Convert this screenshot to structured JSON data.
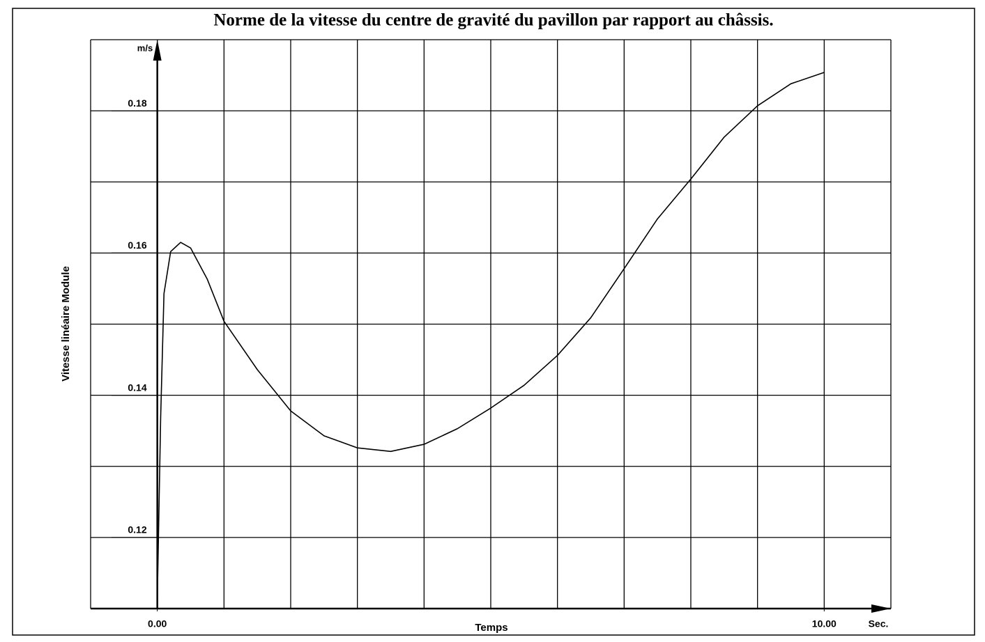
{
  "chart_data": {
    "type": "line",
    "title": "Norme de la vitesse du centre de gravité du pavillon par rapport au châssis.",
    "xlabel": "Temps",
    "ylabel": "Vitesse linéaire Module",
    "yunit": "m/s",
    "xunit": "Sec.",
    "x": [
      0,
      0.05,
      0.1,
      0.2,
      0.35,
      0.5,
      0.75,
      1.0,
      1.5,
      2.0,
      2.5,
      3.0,
      3.5,
      4.0,
      4.5,
      5.0,
      5.5,
      6.0,
      6.5,
      7.0,
      7.5,
      8.0,
      8.5,
      9.0,
      9.5,
      10.0
    ],
    "series": [
      {
        "color": "#000000",
        "values": [
          0.1114,
          0.1368,
          0.1543,
          0.1602,
          0.1615,
          0.1607,
          0.1563,
          0.1504,
          0.1436,
          0.1378,
          0.1343,
          0.1326,
          0.1321,
          0.1331,
          0.1353,
          0.1382,
          0.1414,
          0.1456,
          0.1509,
          0.1578,
          0.1648,
          0.1704,
          0.1763,
          0.1807,
          0.1838,
          0.1854
        ]
      }
    ],
    "xlim": [
      -1,
      11
    ],
    "ylim": [
      0.11,
      0.19
    ],
    "xticks": [
      {
        "value": 0,
        "label": "0.00"
      },
      {
        "value": 10,
        "label": "10.00"
      }
    ],
    "yticks": [
      0.12,
      0.14,
      0.16,
      0.18
    ],
    "xgrid": [
      -1,
      0,
      1,
      2,
      3,
      4,
      5,
      6,
      7,
      8,
      9,
      10,
      11
    ],
    "ygrid": [
      0.11,
      0.12,
      0.13,
      0.14,
      0.15,
      0.16,
      0.17,
      0.18,
      0.19
    ],
    "grid": true
  }
}
